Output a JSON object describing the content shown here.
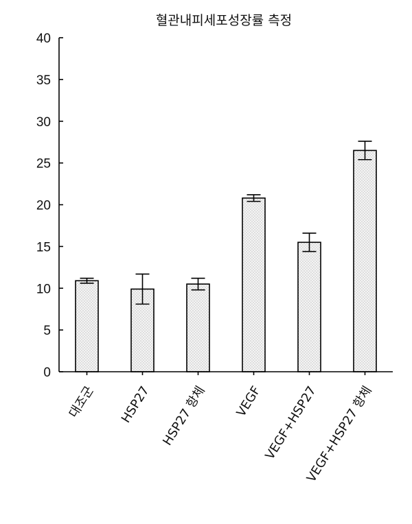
{
  "chart_data": {
    "type": "bar",
    "title": "혈관내피세포성장률 측정",
    "xlabel": "",
    "ylabel": "",
    "ylim": [
      0,
      40
    ],
    "yticks": [
      0,
      5,
      10,
      15,
      20,
      25,
      30,
      35,
      40
    ],
    "categories": [
      "대조군",
      "HSP27",
      "HSP27 항체",
      "VEGF",
      "VEGF+HSP27",
      "VEGF+HSP27 항체"
    ],
    "values": [
      10.9,
      9.9,
      10.5,
      20.8,
      15.5,
      26.5
    ],
    "errors": [
      0.3,
      1.8,
      0.7,
      0.4,
      1.1,
      1.1
    ],
    "grid": false,
    "bar_fill": "#f0f0f0",
    "bar_pattern": "dotted"
  }
}
